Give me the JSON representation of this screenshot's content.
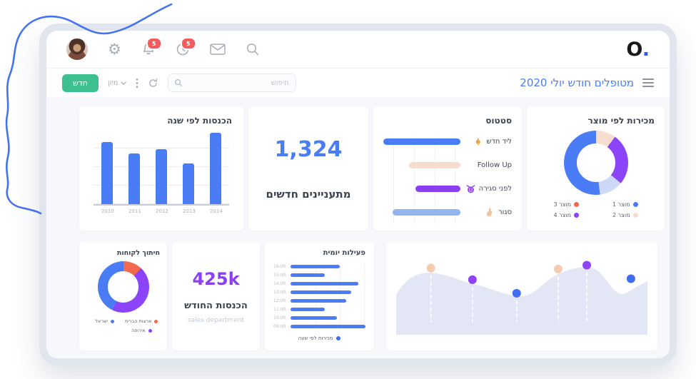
{
  "topbar": {
    "bell_badge": "5",
    "clock_badge": "5",
    "logo": "O",
    "logo_dot": "."
  },
  "toolbar": {
    "new_button": "חדש",
    "sort_label": "מיון",
    "search_placeholder": "חיפוש",
    "page_title": "מטופלים חודש יולי 2020"
  },
  "cards": {
    "new_leads": {
      "value": "1,324",
      "label": "מתעניינים חדשים"
    },
    "monthly_income": {
      "value": "425k",
      "label": "הכנסות החודש",
      "sublabel": "sales department"
    }
  },
  "chart_data": [
    {
      "id": "yearly_income",
      "type": "bar",
      "title": "הכנסות לפי שנה",
      "categories": [
        "2010",
        "2011",
        "2012",
        "2013",
        "2014"
      ],
      "values": [
        87,
        71,
        77,
        57,
        100
      ],
      "ylim": [
        0,
        100
      ],
      "grid": true,
      "bar_color": "#4a7df5"
    },
    {
      "id": "status",
      "type": "bar",
      "orientation": "horizontal",
      "title": "סטטוס",
      "categories": [
        "ליד חדש",
        "Follow Up",
        "לפני סגירה",
        "סגור"
      ],
      "values": [
        100,
        67,
        58,
        88
      ],
      "colors": [
        "#4a7df5",
        "#f7dcd0",
        "#8b3ff2",
        "#93b4ef"
      ],
      "icons": [
        "flame-icon",
        "",
        "devil-icon",
        "hand-icon"
      ]
    },
    {
      "id": "sales_by_product",
      "type": "pie",
      "title": "מכירות לפי מוצר",
      "slices": [
        {
          "label": "מוצר 2",
          "value": 10,
          "color": "#f7dcd0"
        },
        {
          "label": "מוצר 4",
          "value": 26,
          "color": "#8b44f7"
        },
        {
          "label": "מוצר 3",
          "value": 12,
          "color": "#ccd8f6"
        },
        {
          "label": "מוצר 1",
          "value": 52,
          "color": "#4a7df5"
        }
      ],
      "legend": [
        {
          "label": "מוצר 1",
          "color": "#4a7df5"
        },
        {
          "label": "מוצר 3",
          "color": "#f2694e"
        },
        {
          "label": "מוצר 2",
          "color": "#f7dcd0"
        },
        {
          "label": "מוצר 4",
          "color": "#8b44f7"
        }
      ]
    },
    {
      "id": "daily_activity",
      "type": "bar",
      "orientation": "horizontal",
      "title": "פעילות יומית",
      "categories": [
        "16:00",
        "15:00",
        "14:00",
        "13:00",
        "12:00",
        "11:00",
        "10:00",
        "09:00"
      ],
      "values": [
        66,
        46,
        90,
        81,
        74,
        46,
        62,
        100
      ],
      "bar_color": "#4a7df5",
      "legend": "מכירות לפי שעה"
    },
    {
      "id": "customer_split",
      "type": "pie",
      "title": "חיתוך לקוחות",
      "slices": [
        {
          "label": "ארצות הברית",
          "value": 12,
          "color": "#f2694e"
        },
        {
          "label": "אירופה",
          "value": 45,
          "color": "#8b44f7"
        },
        {
          "label": "ישראל",
          "value": 43,
          "color": "#4a7df5"
        }
      ],
      "legend": [
        {
          "label": "ארצות הברית",
          "color": "#f2694e"
        },
        {
          "label": "ישראל",
          "color": "#4a7df5"
        },
        {
          "label": "אירופה",
          "color": "#8b44f7"
        }
      ]
    },
    {
      "id": "trend",
      "type": "area",
      "area_color": "#e3e6f5",
      "points": [
        {
          "x": 15,
          "y": 21,
          "color": "#f5cbb2"
        },
        {
          "x": 31,
          "y": 33,
          "color": "#8f44f2"
        },
        {
          "x": 48,
          "y": 47,
          "color": "#3f6ef0"
        },
        {
          "x": 64,
          "y": 22,
          "color": "#f5cbb2"
        },
        {
          "x": 75,
          "y": 18,
          "color": "#8f44f2"
        },
        {
          "x": 92,
          "y": 32,
          "color": "#3f6ef0"
        }
      ],
      "guide_points": [
        0,
        1,
        2,
        3,
        4
      ]
    }
  ]
}
